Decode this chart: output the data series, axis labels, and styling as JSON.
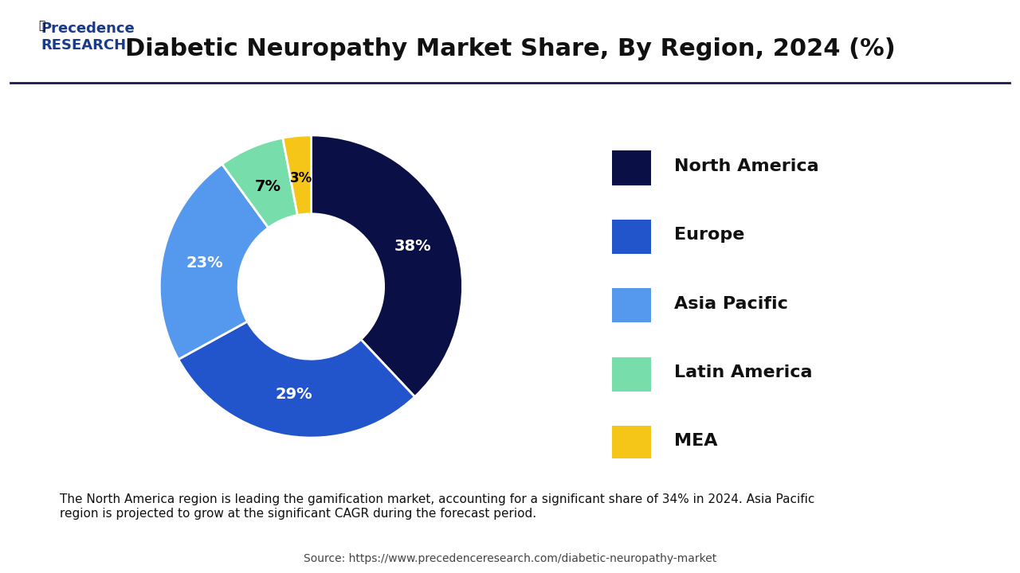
{
  "title": "Diabetic Neuropathy Market Share, By Region, 2024 (%)",
  "slices": [
    38,
    29,
    23,
    7,
    3
  ],
  "labels": [
    "North America",
    "Europe",
    "Asia Pacific",
    "Latin America",
    "MEA"
  ],
  "pct_labels": [
    "38%",
    "29%",
    "23%",
    "7%",
    "3%"
  ],
  "colors": [
    "#0a1045",
    "#2255cc",
    "#5599ee",
    "#77ddaa",
    "#f5c518"
  ],
  "label_colors": [
    "white",
    "white",
    "white",
    "black",
    "black"
  ],
  "startangle": 90,
  "legend_labels": [
    "North America",
    "Europe",
    "Asia Pacific",
    "Latin America",
    "MEA"
  ],
  "legend_colors": [
    "#0a1045",
    "#2255cc",
    "#5599ee",
    "#77ddaa",
    "#f5c518"
  ],
  "note_text": "The North America region is leading the gamification market, accounting for a significant share of 34% in 2024. Asia Pacific\nregion is projected to grow at the significant CAGR during the forecast period.",
  "source_text": "Source: https://www.precedenceresearch.com/diabetic-neuropathy-market",
  "bg_color": "#ffffff",
  "note_bg_color": "#dce9f5",
  "title_fontsize": 22,
  "label_fontsize": 15,
  "legend_fontsize": 16
}
